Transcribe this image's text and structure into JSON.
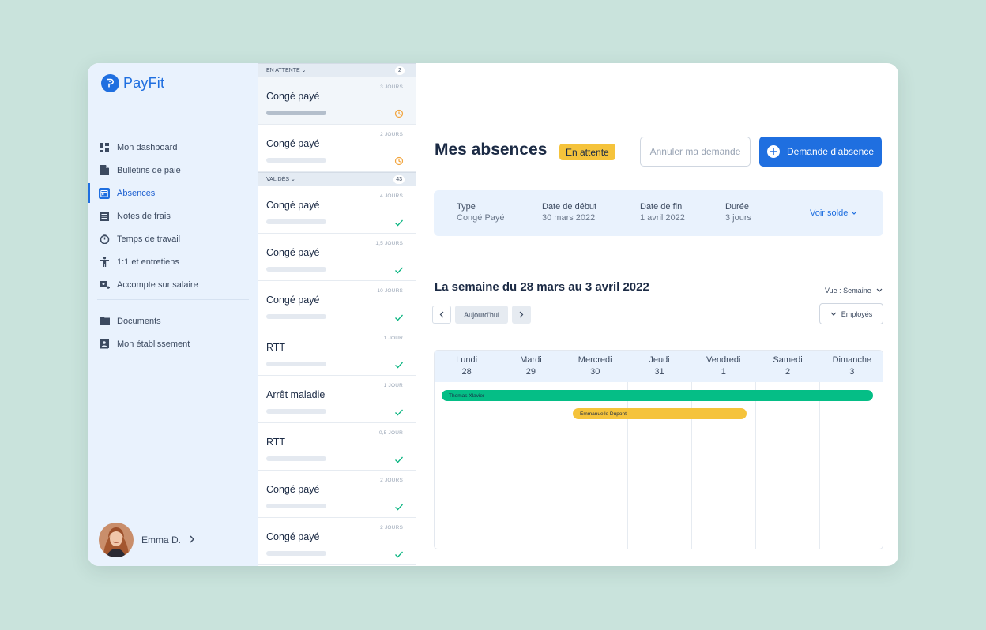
{
  "brand": {
    "name": "PayFit",
    "color": "#1f6fe0"
  },
  "sidebar": {
    "items": [
      {
        "label": "Mon dashboard",
        "icon": "dashboard-icon"
      },
      {
        "label": "Bulletins de paie",
        "icon": "document-icon"
      },
      {
        "label": "Absences",
        "icon": "calendar-icon",
        "active": true
      },
      {
        "label": "Notes de frais",
        "icon": "receipt-icon"
      },
      {
        "label": "Temps de travail",
        "icon": "stopwatch-icon"
      },
      {
        "label": "1:1 et entretiens",
        "icon": "person-icon"
      },
      {
        "label": "Accompte sur salaire",
        "icon": "cash-icon"
      }
    ],
    "items2": [
      {
        "label": "Documents",
        "icon": "folder-icon"
      },
      {
        "label": "Mon établissement",
        "icon": "contact-card-icon"
      }
    ],
    "user": {
      "name": "Emma D."
    }
  },
  "requests": {
    "pending": {
      "label": "EN ATTENTE",
      "count": "2",
      "items": [
        {
          "title": "Congé payé",
          "duration": "3 JOURS"
        },
        {
          "title": "Congé payé",
          "duration": "2 JOURS"
        }
      ]
    },
    "validated": {
      "label": "VALIDÉS",
      "count": "43",
      "items": [
        {
          "title": "Congé payé",
          "duration": "4 JOURS"
        },
        {
          "title": "Congé payé",
          "duration": "1,5 JOURS"
        },
        {
          "title": "Congé payé",
          "duration": "10 JOURS"
        },
        {
          "title": "RTT",
          "duration": "1 JOUR"
        },
        {
          "title": "Arrêt maladie",
          "duration": "1 JOUR"
        },
        {
          "title": "RTT",
          "duration": "0,5 JOUR"
        },
        {
          "title": "Congé payé",
          "duration": "2 JOURS"
        },
        {
          "title": "Congé payé",
          "duration": "2 JOURS"
        }
      ]
    }
  },
  "main": {
    "title": "Mes absences",
    "status": "En attente",
    "cancel_label": "Annuler ma demande",
    "primary_label": "Demande d’absence",
    "summary": {
      "type_label": "Type",
      "type_value": "Congé Payé",
      "start_label": "Date de début",
      "start_value": "30 mars 2022",
      "end_label": "Date de fin",
      "end_value": "1 avril 2022",
      "duration_label": "Durée",
      "duration_value": "3 jours",
      "balance_link": "Voir solde"
    },
    "week_title": "La semaine du 28 mars au 3 avril 2022",
    "view_label": "Vue : Semaine",
    "today_label": "Aujourd'hui",
    "employees_label": "Employés",
    "days": [
      {
        "name": "Lundi",
        "num": "28"
      },
      {
        "name": "Mardi",
        "num": "29"
      },
      {
        "name": "Mercredi",
        "num": "30"
      },
      {
        "name": "Jeudi",
        "num": "31"
      },
      {
        "name": "Vendredi",
        "num": "1"
      },
      {
        "name": "Samedi",
        "num": "2"
      },
      {
        "name": "Dimanche",
        "num": "3"
      }
    ],
    "events": [
      {
        "name": "Thomas Xlavier",
        "color": "#05be86"
      },
      {
        "name": "Emmanuelle Dupont",
        "color": "#f5c33b"
      }
    ]
  }
}
